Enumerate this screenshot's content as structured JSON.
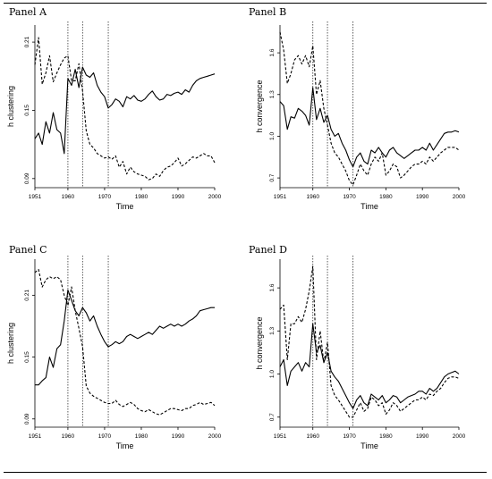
{
  "panels": [
    {
      "label": "Panel A",
      "ylabel": "h clustering",
      "xlabel": "Time",
      "yticks": [
        "0.09",
        "0.15",
        "0.21"
      ],
      "xticks": [
        "1951",
        "1960",
        "1970",
        "1980",
        "1990",
        "2000"
      ]
    },
    {
      "label": "Panel B",
      "ylabel": "h convergence",
      "xlabel": "Time",
      "yticks": [
        "0.7",
        "1.0",
        "1.3",
        "1.6"
      ],
      "xticks": [
        "1951",
        "1960",
        "1970",
        "1980",
        "1990",
        "2000"
      ]
    },
    {
      "label": "Panel C",
      "ylabel": "h clustering",
      "xlabel": "Time",
      "yticks": [
        "0.09",
        "0.15",
        "0.21"
      ],
      "xticks": [
        "1951",
        "1960",
        "1970",
        "1980",
        "1990",
        "2000"
      ]
    },
    {
      "label": "Panel D",
      "ylabel": "h convergence",
      "xlabel": "Time",
      "yticks": [
        "0.7",
        "1.0",
        "1.3",
        "1.6"
      ],
      "xticks": [
        "1951",
        "1960",
        "1970",
        "1980",
        "1990",
        "2000"
      ]
    }
  ],
  "chart_data": [
    {
      "type": "line",
      "title": "Panel A",
      "xlabel": "Time",
      "ylabel": "h clustering",
      "xlim": [
        1951,
        2000
      ],
      "ylim": [
        0.082,
        0.225
      ],
      "yticks": [
        0.09,
        0.15,
        0.21
      ],
      "xticks": [
        1951,
        1960,
        1970,
        1980,
        1990,
        2000
      ],
      "vlines": [
        1960,
        1964,
        1971
      ],
      "x": [
        1951,
        1952,
        1953,
        1954,
        1955,
        1956,
        1957,
        1958,
        1959,
        1960,
        1961,
        1962,
        1963,
        1964,
        1965,
        1966,
        1967,
        1968,
        1969,
        1970,
        1971,
        1972,
        1973,
        1974,
        1975,
        1976,
        1977,
        1978,
        1979,
        1980,
        1981,
        1982,
        1983,
        1984,
        1985,
        1986,
        1987,
        1988,
        1989,
        1990,
        1991,
        1992,
        1993,
        1994,
        1995,
        1996,
        1997,
        1998,
        1999,
        2000
      ],
      "series": [
        {
          "style": "solid",
          "values": [
            0.125,
            0.13,
            0.12,
            0.14,
            0.13,
            0.148,
            0.133,
            0.13,
            0.112,
            0.178,
            0.172,
            0.186,
            0.17,
            0.188,
            0.181,
            0.179,
            0.183,
            0.172,
            0.166,
            0.162,
            0.152,
            0.155,
            0.16,
            0.158,
            0.153,
            0.162,
            0.16,
            0.163,
            0.159,
            0.158,
            0.16,
            0.164,
            0.167,
            0.162,
            0.159,
            0.16,
            0.164,
            0.163,
            0.165,
            0.166,
            0.164,
            0.168,
            0.166,
            0.172,
            0.176,
            0.178,
            0.179,
            0.18,
            0.181,
            0.182
          ]
        },
        {
          "style": "dashed",
          "values": [
            0.19,
            0.214,
            0.173,
            0.183,
            0.198,
            0.175,
            0.183,
            0.19,
            0.196,
            0.198,
            0.176,
            0.176,
            0.191,
            0.167,
            0.132,
            0.12,
            0.117,
            0.112,
            0.11,
            0.108,
            0.109,
            0.107,
            0.11,
            0.1,
            0.105,
            0.094,
            0.1,
            0.096,
            0.094,
            0.093,
            0.092,
            0.089,
            0.09,
            0.094,
            0.092,
            0.097,
            0.1,
            0.101,
            0.104,
            0.108,
            0.101,
            0.103,
            0.106,
            0.109,
            0.108,
            0.11,
            0.112,
            0.11,
            0.11,
            0.104
          ]
        }
      ]
    },
    {
      "type": "line",
      "title": "Panel B",
      "xlabel": "Time",
      "ylabel": "h convergence",
      "xlim": [
        1951,
        2000
      ],
      "ylim": [
        0.63,
        1.8
      ],
      "yticks": [
        0.7,
        1.0,
        1.3,
        1.6
      ],
      "xticks": [
        1951,
        1960,
        1970,
        1980,
        1990,
        2000
      ],
      "vlines": [
        1960,
        1964,
        1971
      ],
      "x": [
        1951,
        1952,
        1953,
        1954,
        1955,
        1956,
        1957,
        1958,
        1959,
        1960,
        1961,
        1962,
        1963,
        1964,
        1965,
        1966,
        1967,
        1968,
        1969,
        1970,
        1971,
        1972,
        1973,
        1974,
        1975,
        1976,
        1977,
        1978,
        1979,
        1980,
        1981,
        1982,
        1983,
        1984,
        1985,
        1986,
        1987,
        1988,
        1989,
        1990,
        1991,
        1992,
        1993,
        1994,
        1995,
        1996,
        1997,
        1998,
        1999,
        2000
      ],
      "series": [
        {
          "style": "solid",
          "values": [
            1.25,
            1.22,
            1.05,
            1.14,
            1.13,
            1.2,
            1.18,
            1.15,
            1.08,
            1.35,
            1.12,
            1.2,
            1.1,
            1.15,
            1.05,
            1.0,
            1.02,
            0.95,
            0.9,
            0.83,
            0.78,
            0.85,
            0.88,
            0.82,
            0.8,
            0.9,
            0.88,
            0.92,
            0.88,
            0.85,
            0.9,
            0.92,
            0.88,
            0.86,
            0.84,
            0.86,
            0.88,
            0.9,
            0.9,
            0.92,
            0.9,
            0.95,
            0.9,
            0.94,
            0.98,
            1.02,
            1.03,
            1.03,
            1.04,
            1.03
          ]
        },
        {
          "style": "dashed",
          "values": [
            1.75,
            1.62,
            1.38,
            1.45,
            1.55,
            1.58,
            1.52,
            1.58,
            1.5,
            1.65,
            1.3,
            1.4,
            1.2,
            1.08,
            0.95,
            0.88,
            0.85,
            0.8,
            0.75,
            0.68,
            0.65,
            0.72,
            0.8,
            0.75,
            0.72,
            0.8,
            0.85,
            0.82,
            0.88,
            0.72,
            0.75,
            0.8,
            0.78,
            0.7,
            0.72,
            0.75,
            0.78,
            0.8,
            0.8,
            0.82,
            0.8,
            0.85,
            0.82,
            0.85,
            0.88,
            0.9,
            0.92,
            0.92,
            0.92,
            0.9
          ]
        }
      ]
    },
    {
      "type": "line",
      "title": "Panel C",
      "xlabel": "Time",
      "ylabel": "h clustering",
      "xlim": [
        1951,
        2000
      ],
      "ylim": [
        0.082,
        0.245
      ],
      "yticks": [
        0.09,
        0.15,
        0.21
      ],
      "xticks": [
        1951,
        1960,
        1970,
        1980,
        1990,
        2000
      ],
      "vlines": [
        1960,
        1964,
        1971
      ],
      "x": [
        1951,
        1952,
        1953,
        1954,
        1955,
        1956,
        1957,
        1958,
        1959,
        1960,
        1961,
        1962,
        1963,
        1964,
        1965,
        1966,
        1967,
        1968,
        1969,
        1970,
        1971,
        1972,
        1973,
        1974,
        1975,
        1976,
        1977,
        1978,
        1979,
        1980,
        1981,
        1982,
        1983,
        1984,
        1985,
        1986,
        1987,
        1988,
        1989,
        1990,
        1991,
        1992,
        1993,
        1994,
        1995,
        1996,
        1997,
        1998,
        1999,
        2000
      ],
      "series": [
        {
          "style": "solid",
          "values": [
            0.123,
            0.123,
            0.127,
            0.13,
            0.15,
            0.14,
            0.158,
            0.162,
            0.185,
            0.215,
            0.205,
            0.195,
            0.19,
            0.198,
            0.193,
            0.185,
            0.19,
            0.18,
            0.172,
            0.165,
            0.16,
            0.162,
            0.165,
            0.163,
            0.165,
            0.17,
            0.172,
            0.17,
            0.168,
            0.17,
            0.172,
            0.174,
            0.172,
            0.176,
            0.18,
            0.178,
            0.18,
            0.182,
            0.18,
            0.182,
            0.18,
            0.182,
            0.185,
            0.187,
            0.19,
            0.195,
            0.196,
            0.197,
            0.198,
            0.198
          ]
        },
        {
          "style": "dashed",
          "values": [
            0.232,
            0.235,
            0.218,
            0.225,
            0.228,
            0.226,
            0.228,
            0.225,
            0.21,
            0.2,
            0.218,
            0.195,
            0.178,
            0.16,
            0.122,
            0.115,
            0.112,
            0.11,
            0.108,
            0.106,
            0.105,
            0.105,
            0.108,
            0.104,
            0.102,
            0.104,
            0.106,
            0.104,
            0.1,
            0.098,
            0.097,
            0.099,
            0.097,
            0.095,
            0.094,
            0.096,
            0.098,
            0.1,
            0.1,
            0.099,
            0.098,
            0.1,
            0.1,
            0.103,
            0.104,
            0.106,
            0.104,
            0.105,
            0.106,
            0.103
          ]
        }
      ]
    },
    {
      "type": "line",
      "title": "Panel D",
      "xlabel": "Time",
      "ylabel": "h convergence",
      "xlim": [
        1951,
        2000
      ],
      "ylim": [
        0.63,
        1.8
      ],
      "yticks": [
        0.7,
        1.0,
        1.3,
        1.6
      ],
      "xticks": [
        1951,
        1960,
        1970,
        1980,
        1990,
        2000
      ],
      "vlines": [
        1960,
        1964,
        1971
      ],
      "x": [
        1951,
        1952,
        1953,
        1954,
        1955,
        1956,
        1957,
        1958,
        1959,
        1960,
        1961,
        1962,
        1963,
        1964,
        1965,
        1966,
        1967,
        1968,
        1969,
        1970,
        1971,
        1972,
        1973,
        1974,
        1975,
        1976,
        1977,
        1978,
        1979,
        1980,
        1981,
        1982,
        1983,
        1984,
        1985,
        1986,
        1987,
        1988,
        1989,
        1990,
        1991,
        1992,
        1993,
        1994,
        1995,
        1996,
        1997,
        1998,
        1999,
        2000
      ],
      "series": [
        {
          "style": "solid",
          "values": [
            1.05,
            1.1,
            0.92,
            1.02,
            1.05,
            1.08,
            1.02,
            1.08,
            1.05,
            1.35,
            1.15,
            1.2,
            1.08,
            1.15,
            1.02,
            0.98,
            0.95,
            0.9,
            0.85,
            0.8,
            0.76,
            0.82,
            0.85,
            0.8,
            0.78,
            0.86,
            0.84,
            0.82,
            0.85,
            0.8,
            0.82,
            0.85,
            0.84,
            0.8,
            0.82,
            0.84,
            0.85,
            0.86,
            0.88,
            0.88,
            0.86,
            0.9,
            0.88,
            0.9,
            0.94,
            0.98,
            1.0,
            1.01,
            1.02,
            1.0
          ]
        },
        {
          "style": "dashed",
          "values": [
            1.45,
            1.48,
            1.1,
            1.35,
            1.35,
            1.4,
            1.36,
            1.45,
            1.58,
            1.75,
            1.1,
            1.3,
            1.08,
            1.22,
            0.92,
            0.85,
            0.82,
            0.78,
            0.74,
            0.7,
            0.7,
            0.75,
            0.8,
            0.74,
            0.76,
            0.84,
            0.82,
            0.78,
            0.8,
            0.72,
            0.75,
            0.8,
            0.78,
            0.74,
            0.76,
            0.78,
            0.8,
            0.82,
            0.82,
            0.84,
            0.82,
            0.86,
            0.85,
            0.88,
            0.9,
            0.94,
            0.97,
            0.98,
            0.98,
            0.97
          ]
        }
      ]
    }
  ]
}
